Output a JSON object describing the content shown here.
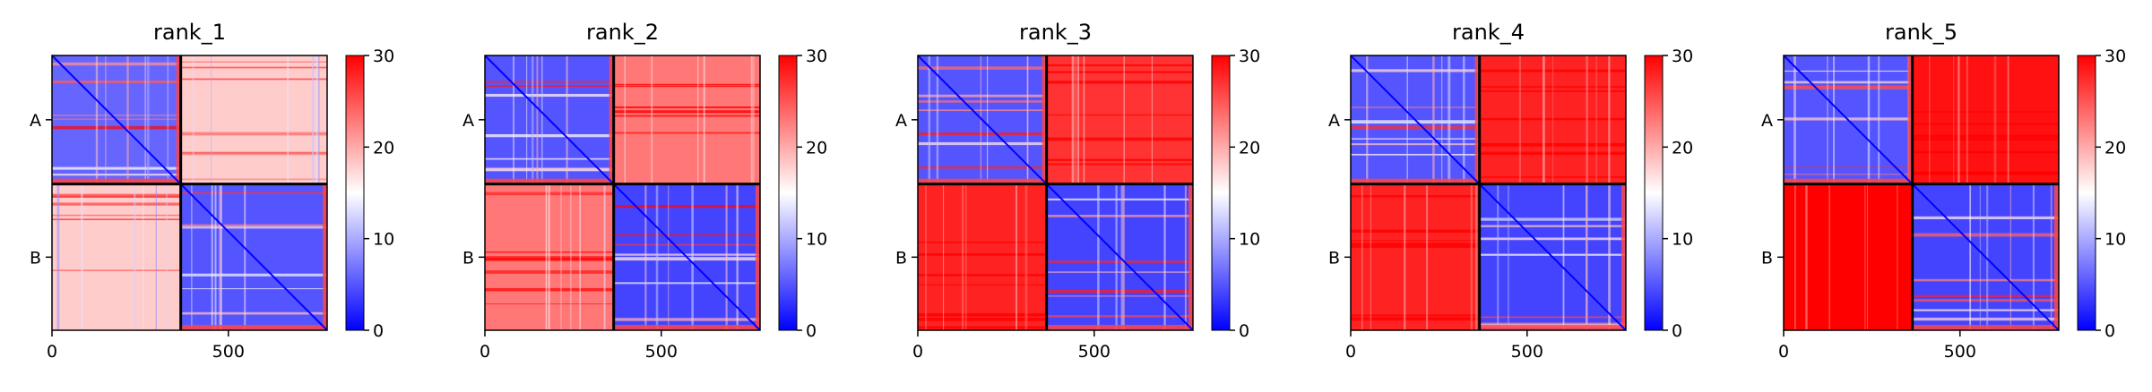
{
  "chart_data": [
    {
      "type": "heatmap",
      "title": "rank_1",
      "xlim": [
        0,
        780
      ],
      "x_ticks": [
        0,
        500
      ],
      "row_labels": [
        "A",
        "B"
      ],
      "chain_boundary": 365,
      "colorbar": {
        "min": 0,
        "max": 30,
        "ticks": [
          0,
          10,
          20,
          30
        ],
        "colormap": "bwr"
      },
      "block_levels": {
        "AA": 6,
        "AB": 18,
        "BA": 18,
        "BB": 5
      }
    },
    {
      "type": "heatmap",
      "title": "rank_2",
      "xlim": [
        0,
        780
      ],
      "x_ticks": [
        0,
        500
      ],
      "row_labels": [
        "A",
        "B"
      ],
      "chain_boundary": 365,
      "colorbar": {
        "min": 0,
        "max": 30,
        "ticks": [
          0,
          10,
          20,
          30
        ],
        "colormap": "bwr"
      },
      "block_levels": {
        "AA": 5,
        "AB": 23,
        "BA": 23,
        "BB": 4
      }
    },
    {
      "type": "heatmap",
      "title": "rank_3",
      "xlim": [
        0,
        780
      ],
      "x_ticks": [
        0,
        500
      ],
      "row_labels": [
        "A",
        "B"
      ],
      "chain_boundary": 365,
      "colorbar": {
        "min": 0,
        "max": 30,
        "ticks": [
          0,
          10,
          20,
          30
        ],
        "colormap": "bwr"
      },
      "block_levels": {
        "AA": 5,
        "AB": 27,
        "BA": 28,
        "BB": 4
      }
    },
    {
      "type": "heatmap",
      "title": "rank_4",
      "xlim": [
        0,
        780
      ],
      "x_ticks": [
        0,
        500
      ],
      "row_labels": [
        "A",
        "B"
      ],
      "chain_boundary": 365,
      "colorbar": {
        "min": 0,
        "max": 30,
        "ticks": [
          0,
          10,
          20,
          30
        ],
        "colormap": "bwr"
      },
      "block_levels": {
        "AA": 5,
        "AB": 28,
        "BA": 28,
        "BB": 4
      }
    },
    {
      "type": "heatmap",
      "title": "rank_5",
      "xlim": [
        0,
        780
      ],
      "x_ticks": [
        0,
        500
      ],
      "row_labels": [
        "A",
        "B"
      ],
      "chain_boundary": 365,
      "colorbar": {
        "min": 0,
        "max": 30,
        "ticks": [
          0,
          10,
          20,
          30
        ],
        "colormap": "bwr"
      },
      "block_levels": {
        "AA": 5,
        "AB": 29,
        "BA": 30,
        "BB": 4
      }
    }
  ]
}
